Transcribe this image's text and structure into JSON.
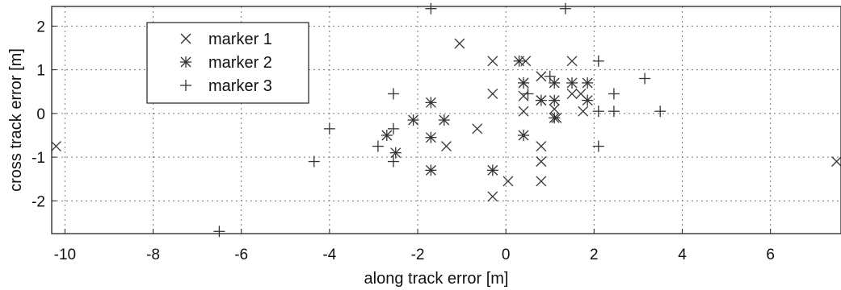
{
  "chart_data": {
    "type": "scatter",
    "xlabel": "along track error [m]",
    "ylabel": "cross track error [m]",
    "xlim": [
      -10.3,
      7.6
    ],
    "ylim": [
      -2.75,
      2.45
    ],
    "xticks": [
      -10,
      -8,
      -6,
      -4,
      -2,
      0,
      2,
      4,
      6
    ],
    "yticks": [
      -2,
      -1,
      0,
      1,
      2
    ],
    "grid": true,
    "legend_position": "top-left",
    "series": [
      {
        "name": "marker 1",
        "marker": "x",
        "points": [
          [
            -10.2,
            -0.75
          ],
          [
            -1.05,
            1.6
          ],
          [
            -0.3,
            1.2
          ],
          [
            0.45,
            1.2
          ],
          [
            -0.3,
            0.45
          ],
          [
            0.4,
            0.7
          ],
          [
            0.4,
            0.4
          ],
          [
            0.4,
            0.05
          ],
          [
            0.8,
            0.85
          ],
          [
            0.8,
            0.3
          ],
          [
            0.8,
            -0.75
          ],
          [
            0.8,
            -1.1
          ],
          [
            0.8,
            -1.55
          ],
          [
            1.1,
            0.1
          ],
          [
            1.5,
            1.2
          ],
          [
            1.5,
            0.45
          ],
          [
            1.7,
            0.45
          ],
          [
            1.75,
            0.05
          ],
          [
            1.15,
            -0.1
          ],
          [
            -0.65,
            -0.35
          ],
          [
            -1.35,
            -0.75
          ],
          [
            0.05,
            -1.55
          ],
          [
            -0.3,
            -1.9
          ],
          [
            7.5,
            -1.1
          ]
        ]
      },
      {
        "name": "marker 2",
        "marker": "star",
        "points": [
          [
            0.3,
            1.2
          ],
          [
            0.4,
            0.7
          ],
          [
            0.8,
            0.3
          ],
          [
            1.1,
            0.7
          ],
          [
            1.1,
            0.3
          ],
          [
            1.1,
            -0.1
          ],
          [
            1.5,
            0.7
          ],
          [
            1.85,
            0.7
          ],
          [
            1.85,
            0.3
          ],
          [
            -1.7,
            0.25
          ],
          [
            -2.1,
            -0.15
          ],
          [
            -1.4,
            -0.15
          ],
          [
            -1.7,
            -0.55
          ],
          [
            -2.7,
            -0.5
          ],
          [
            -2.5,
            -0.9
          ],
          [
            0.4,
            -0.5
          ],
          [
            -1.7,
            -1.3
          ],
          [
            -0.3,
            -1.3
          ]
        ]
      },
      {
        "name": "marker 3",
        "marker": "plus",
        "points": [
          [
            -1.7,
            2.4
          ],
          [
            1.35,
            2.4
          ],
          [
            2.1,
            1.2
          ],
          [
            1.0,
            0.85
          ],
          [
            0.5,
            0.45
          ],
          [
            -2.55,
            0.45
          ],
          [
            2.1,
            0.05
          ],
          [
            2.45,
            0.45
          ],
          [
            2.45,
            0.05
          ],
          [
            3.15,
            0.8
          ],
          [
            3.5,
            0.05
          ],
          [
            -4.0,
            -0.35
          ],
          [
            -2.55,
            -0.35
          ],
          [
            -2.9,
            -0.75
          ],
          [
            -2.55,
            -1.1
          ],
          [
            -4.35,
            -1.1
          ],
          [
            2.1,
            -0.75
          ],
          [
            -6.5,
            -2.7
          ]
        ]
      }
    ]
  }
}
